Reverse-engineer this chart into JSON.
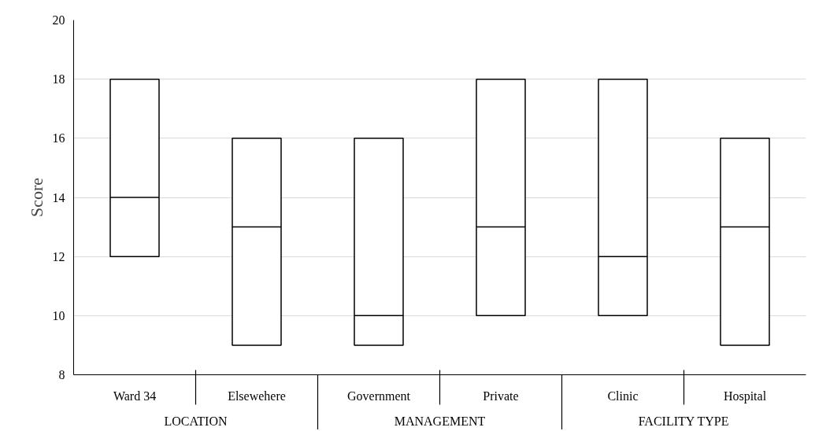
{
  "chart_data": {
    "type": "box",
    "ylabel": "Score",
    "categories": [
      "Ward 34",
      "Elsewehere",
      "Government",
      "Private",
      "Clinic",
      "Hospital"
    ],
    "boxes": [
      {
        "low": 12,
        "q1": 12,
        "median": 14,
        "q3": 18,
        "high": 18
      },
      {
        "low": 9,
        "q1": 9,
        "median": 13,
        "q3": 16,
        "high": 16
      },
      {
        "low": 9,
        "q1": 9,
        "median": 10,
        "q3": 16,
        "high": 16
      },
      {
        "low": 10,
        "q1": 10,
        "median": 13,
        "q3": 18,
        "high": 18
      },
      {
        "low": 10,
        "q1": 10,
        "median": 12,
        "q3": 18,
        "high": 18
      },
      {
        "low": 9,
        "q1": 9,
        "median": 13,
        "q3": 16,
        "high": 16
      }
    ],
    "color": "#000000",
    "ylim": [
      8,
      20
    ],
    "yticks": [
      8,
      10,
      12,
      14,
      16,
      18,
      20
    ],
    "grid": "y",
    "annotations": [
      "LOCATION",
      "MANAGEMENT",
      "FACILITY TYPE"
    ]
  }
}
